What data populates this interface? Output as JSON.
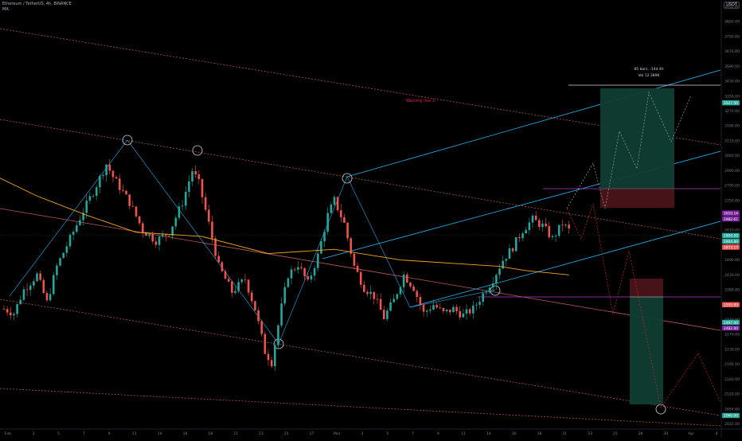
{
  "header": {
    "symbol_line": "Ethereum / TetherUS, 4h, BINANCE",
    "indicator": "MA",
    "currency": "USDT"
  },
  "colors": {
    "bull": "#26a69a",
    "bear": "#ef5350",
    "ma": "#f5a623",
    "channel": "#e57373",
    "blue_line": "#29b6f6",
    "purple_line": "#b23ec9",
    "annotation_text": "#e91e63",
    "long_target": "#0f3d33",
    "long_stop": "#4a1419"
  },
  "chart_data": {
    "type": "candlestick",
    "x_axis_labels": [
      "Feb",
      "3",
      "5",
      "7",
      "9",
      "11",
      "14",
      "16",
      "18",
      "21",
      "23",
      "25",
      "27",
      "Mar",
      "3",
      "5",
      "7",
      "9",
      "11",
      "14",
      "16",
      "18",
      "21",
      "23",
      "25",
      "28",
      "30",
      "Apr",
      "4"
    ],
    "y_axis_labels": [
      "3950.00",
      "3850.00",
      "3750.00",
      "3670.00",
      "3590.00",
      "3430.00",
      "3350.00",
      "3270.00",
      "3190.00",
      "3110.00",
      "3060.00",
      "2990.00",
      "2790.00",
      "2750.00",
      "2670.00",
      "2610.00",
      "2550.00",
      "2490.00",
      "2430.00",
      "2390.00",
      "2350.00",
      "2310.00",
      "2270.00",
      "2230.00",
      "2195.00",
      "2160.00",
      "2120.00",
      "2054.00",
      "2022.00"
    ],
    "y_range": [
      2000,
      4010
    ],
    "price_tags": [
      {
        "label": "3527.50",
        "value": 3527.5,
        "color": "#26a69a"
      },
      {
        "label": "3010.14",
        "value": 3010.14,
        "color": "#7b1fa2"
      },
      {
        "label": "2982.61",
        "value": 2982.61,
        "color": "#7b1fa2"
      },
      {
        "label": "2904.59",
        "value": 2904.59,
        "color": "#26a69a"
      },
      {
        "label": "2904.89",
        "value": 2878,
        "color": "#26a69a"
      },
      {
        "label": "2873.17",
        "value": 2850,
        "color": "#ef5350"
      },
      {
        "label": "2555.00",
        "value": 2580,
        "color": "#ef5350"
      },
      {
        "label": "2497.00",
        "value": 2497,
        "color": "#26a69a"
      },
      {
        "label": "2482.00",
        "value": 2470,
        "color": "#7b1fa2"
      },
      {
        "label": "2060.00",
        "value": 2060,
        "color": "#26a69a"
      }
    ],
    "annotations": {
      "channel_label": "Warning line 1",
      "projection_bars": "85 bars, -14d 4h",
      "projection_vol": "Vol 12.389K"
    },
    "candle_anchors": [
      [
        0,
        2560
      ],
      [
        3,
        2540
      ],
      [
        6,
        2650
      ],
      [
        10,
        2720
      ],
      [
        13,
        2590
      ],
      [
        16,
        2760
      ],
      [
        20,
        2890
      ],
      [
        24,
        3020
      ],
      [
        27,
        3110
      ],
      [
        31,
        3240
      ],
      [
        33,
        3180
      ],
      [
        38,
        3060
      ],
      [
        42,
        2930
      ],
      [
        46,
        2880
      ],
      [
        50,
        2920
      ],
      [
        54,
        3060
      ],
      [
        57,
        3210
      ],
      [
        59,
        3150
      ],
      [
        62,
        2960
      ],
      [
        65,
        2760
      ],
      [
        69,
        2640
      ],
      [
        73,
        2700
      ],
      [
        76,
        2560
      ],
      [
        79,
        2360
      ],
      [
        81,
        2310
      ],
      [
        84,
        2570
      ],
      [
        86,
        2720
      ],
      [
        89,
        2770
      ],
      [
        92,
        2680
      ],
      [
        95,
        2810
      ],
      [
        98,
        3000
      ],
      [
        100,
        3070
      ],
      [
        103,
        2960
      ],
      [
        106,
        2760
      ],
      [
        109,
        2660
      ],
      [
        112,
        2620
      ],
      [
        115,
        2520
      ],
      [
        118,
        2600
      ],
      [
        121,
        2720
      ],
      [
        124,
        2660
      ],
      [
        127,
        2540
      ],
      [
        130,
        2580
      ],
      [
        133,
        2540
      ],
      [
        136,
        2560
      ],
      [
        139,
        2530
      ],
      [
        142,
        2560
      ],
      [
        145,
        2630
      ],
      [
        148,
        2700
      ],
      [
        151,
        2790
      ],
      [
        154,
        2850
      ],
      [
        157,
        2930
      ],
      [
        160,
        2980
      ],
      [
        163,
        2950
      ],
      [
        166,
        2890
      ],
      [
        169,
        2960
      ],
      [
        171,
        2930
      ]
    ],
    "ma_points": [
      [
        -6,
        3210
      ],
      [
        10,
        3090
      ],
      [
        25,
        3000
      ],
      [
        40,
        2920
      ],
      [
        60,
        2900
      ],
      [
        80,
        2820
      ],
      [
        100,
        2840
      ],
      [
        120,
        2790
      ],
      [
        140,
        2770
      ],
      [
        150,
        2760
      ],
      [
        158,
        2740
      ],
      [
        171,
        2720
      ]
    ]
  }
}
